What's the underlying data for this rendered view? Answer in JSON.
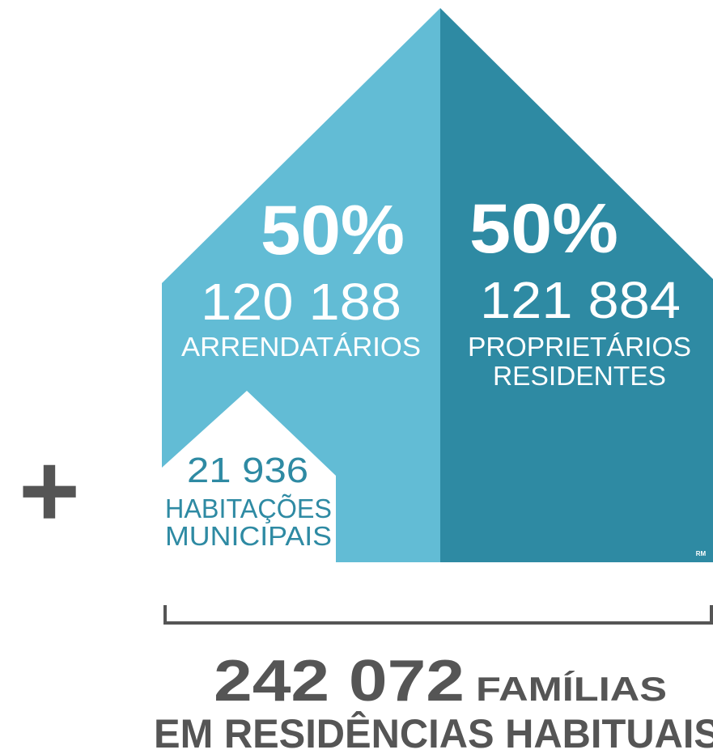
{
  "left": {
    "percent": "50%",
    "number": "120 188",
    "label": "ARRENDATÁRIOS"
  },
  "right": {
    "percent": "50%",
    "number": "121 884",
    "label_lines": [
      "PROPRIETÁRIOS",
      "RESIDENTES"
    ]
  },
  "municipal": {
    "number": "21 936",
    "label_lines": [
      "HABITAÇÕES",
      "MUNICIPAIS"
    ]
  },
  "plus": "+",
  "logo": "RM",
  "total": {
    "number": "242 072",
    "unit": "FAMÍLIAS",
    "caption": "EM RESIDÊNCIAS HABITUAIS"
  }
}
